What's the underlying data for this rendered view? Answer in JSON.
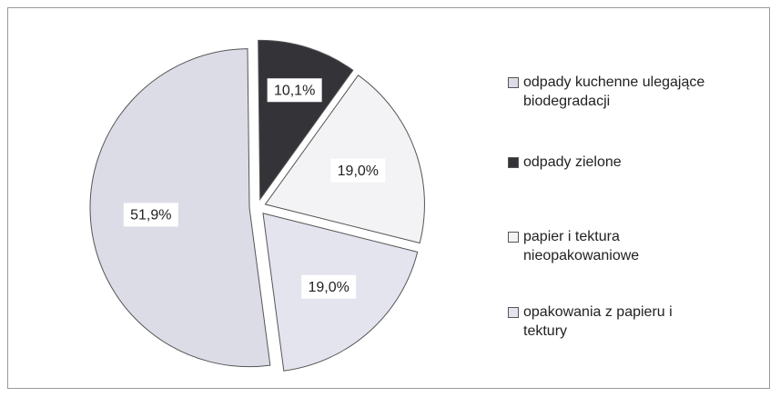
{
  "chart_data": {
    "type": "pie",
    "categories": [
      "odpady kuchenne ulegające biodegradacji",
      "odpady zielone",
      "papier i tektura nieopakowaniowe",
      "opakowania z papieru i tektury"
    ],
    "values": [
      51.9,
      10.1,
      19.0,
      19.0
    ],
    "value_labels": [
      "51,9%",
      "10,1%",
      "19,0%",
      "19,0%"
    ],
    "colors": [
      "#dcdce6",
      "#333338",
      "#f3f3f5",
      "#e4e4ef"
    ],
    "legend": "right"
  }
}
